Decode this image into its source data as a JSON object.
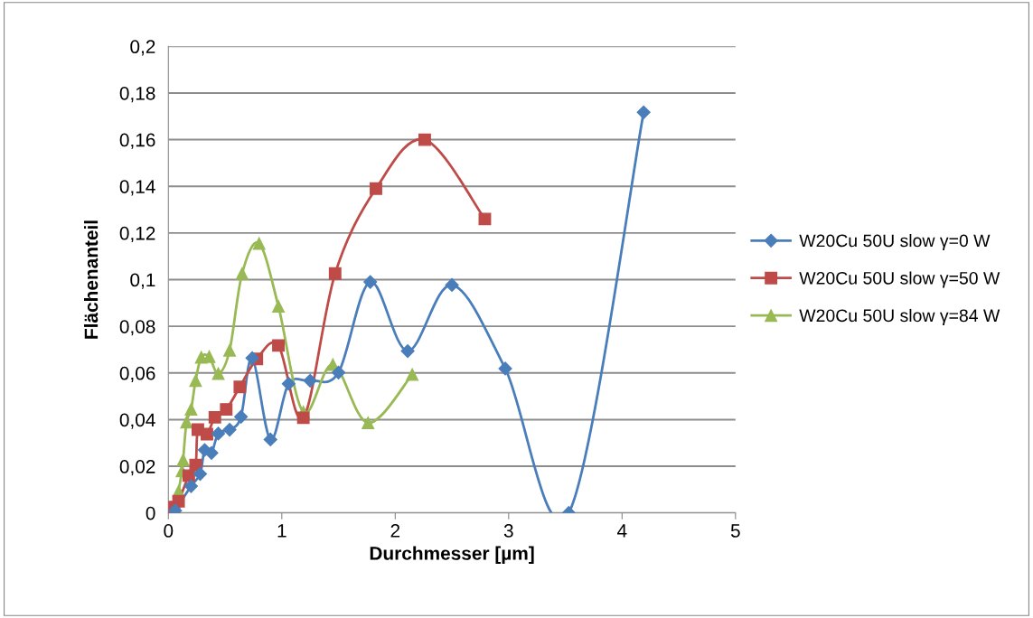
{
  "chart_data": {
    "type": "line",
    "xlabel": "Durchmesser [µm]",
    "ylabel": "Flächenanteil",
    "xlim": [
      0,
      5
    ],
    "xticks": [
      0,
      1,
      2,
      3,
      4,
      5
    ],
    "ylim": [
      0,
      0.2
    ],
    "yticks": [
      {
        "value": 0,
        "label": "0"
      },
      {
        "value": 0.02,
        "label": "0,02"
      },
      {
        "value": 0.04,
        "label": "0,04"
      },
      {
        "value": 0.06,
        "label": "0,06"
      },
      {
        "value": 0.08,
        "label": "0,08"
      },
      {
        "value": 0.1,
        "label": "0,1"
      },
      {
        "value": 0.12,
        "label": "0,12"
      },
      {
        "value": 0.14,
        "label": "0,14"
      },
      {
        "value": 0.16,
        "label": "0,16"
      },
      {
        "value": 0.18,
        "label": "0,18"
      },
      {
        "value": 0.2,
        "label": "0,2"
      }
    ],
    "grid": "y",
    "legend": "right",
    "line_style": "solid",
    "series": [
      {
        "name": "W20Cu 50U slow γ=0 W",
        "color": "#4a7ebb",
        "marker": "diamond",
        "x": [
          0.06,
          0.2,
          0.28,
          0.32,
          0.38,
          0.44,
          0.54,
          0.64,
          0.74,
          0.9,
          1.06,
          1.25,
          1.5,
          1.78,
          2.11,
          2.5,
          2.97,
          3.53,
          4.19
        ],
        "values": [
          0.001,
          0.0115,
          0.0167,
          0.027,
          0.0257,
          0.034,
          0.0357,
          0.0412,
          0.0664,
          0.0315,
          0.0554,
          0.0567,
          0.0602,
          0.099,
          0.0694,
          0.0977,
          0.0619,
          0,
          0.1717
        ]
      },
      {
        "name": "W20Cu 50U slow γ=50 W",
        "color": "#be4b48",
        "marker": "square",
        "x": [
          0.05,
          0.09,
          0.18,
          0.24,
          0.26,
          0.34,
          0.41,
          0.51,
          0.63,
          0.78,
          0.97,
          1.19,
          1.47,
          1.83,
          2.26,
          2.79
        ],
        "values": [
          0.0025,
          0.005,
          0.016,
          0.0205,
          0.0357,
          0.0338,
          0.041,
          0.0444,
          0.054,
          0.066,
          0.0718,
          0.0408,
          0.1026,
          0.139,
          0.16,
          0.126
        ]
      },
      {
        "name": "W20Cu 50U slow γ=84 W",
        "color": "#98b954",
        "marker": "triangle",
        "x": [
          0.09,
          0.12,
          0.13,
          0.16,
          0.2,
          0.24,
          0.29,
          0.36,
          0.44,
          0.54,
          0.65,
          0.8,
          0.97,
          1.19,
          1.45,
          1.76,
          2.15
        ],
        "values": [
          0.0093,
          0.018,
          0.0227,
          0.0389,
          0.0444,
          0.0567,
          0.0667,
          0.067,
          0.0597,
          0.0697,
          0.1026,
          0.1155,
          0.0886,
          0.0432,
          0.0636,
          0.0386,
          0.0593
        ]
      }
    ]
  }
}
